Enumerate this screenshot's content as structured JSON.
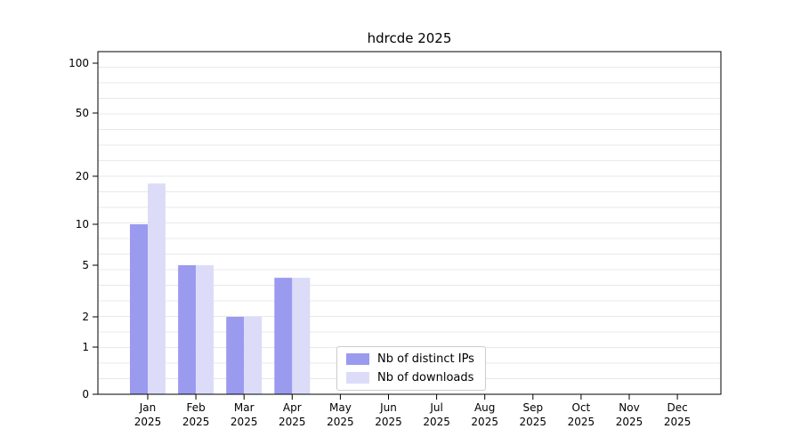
{
  "page": {
    "background": "#ffffff"
  },
  "chart_data": {
    "type": "bar",
    "title": "hdrcde 2025",
    "year_label": "2025",
    "months": [
      "Jan",
      "Feb",
      "Mar",
      "Apr",
      "May",
      "Jun",
      "Jul",
      "Aug",
      "Sep",
      "Oct",
      "Nov",
      "Dec"
    ],
    "categories": [
      "Jan 2025",
      "Feb 2025",
      "Mar 2025",
      "Apr 2025",
      "May 2025",
      "Jun 2025",
      "Jul 2025",
      "Aug 2025",
      "Sep 2025",
      "Oct 2025",
      "Nov 2025",
      "Dec 2025"
    ],
    "series": [
      {
        "name": "Nb of distinct IPs",
        "color": "#9a9aef",
        "values": [
          10,
          5,
          2,
          4,
          0,
          0,
          0,
          0,
          0,
          0,
          0,
          0
        ]
      },
      {
        "name": "Nb of downloads",
        "color": "#dcdcf9",
        "values": [
          18,
          5,
          2,
          4,
          0,
          0,
          0,
          0,
          0,
          0,
          0,
          0
        ]
      }
    ],
    "y_ticks": [
      100,
      50,
      20,
      10,
      5,
      2,
      1,
      0
    ],
    "ylim": [
      0,
      100
    ],
    "yscale": "log",
    "xlabel": "",
    "ylabel": "",
    "grid": "horizontal",
    "grid_color": "#e8e8e8",
    "axis_color": "#000000",
    "legend_position": "lower center"
  }
}
